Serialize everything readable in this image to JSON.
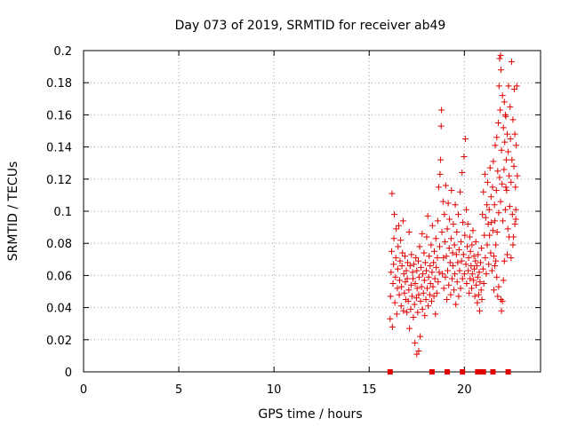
{
  "chart_data": {
    "type": "scatter",
    "title": "Day 073 of 2019, SRMTID for receiver ab49",
    "xlabel": "GPS time / hours",
    "ylabel": "SRMTID / TECUs",
    "xlim": [
      0,
      24
    ],
    "ylim": [
      0,
      0.2
    ],
    "xticks": [
      0,
      5,
      10,
      15,
      20
    ],
    "yticks": [
      0,
      0.02,
      0.04,
      0.06,
      0.08,
      0.1,
      0.12,
      0.14,
      0.16,
      0.18,
      0.2
    ],
    "grid": true,
    "marker": "plus",
    "color": "#e00000",
    "series": [
      {
        "name": "ab49",
        "points": [
          [
            16.1,
            0.033
          ],
          [
            16.12,
            0.047
          ],
          [
            16.15,
            0.062
          ],
          [
            16.18,
            0.075
          ],
          [
            16.2,
            0.111
          ],
          [
            16.22,
            0.028
          ],
          [
            16.25,
            0.055
          ],
          [
            16.28,
            0.067
          ],
          [
            16.3,
            0.083
          ],
          [
            16.32,
            0.098
          ],
          [
            16.35,
            0.043
          ],
          [
            16.38,
            0.059
          ],
          [
            16.4,
            0.071
          ],
          [
            16.42,
            0.089
          ],
          [
            16.45,
            0.036
          ],
          [
            16.48,
            0.052
          ],
          [
            16.5,
            0.064
          ],
          [
            16.52,
            0.078
          ],
          [
            16.55,
            0.091
          ],
          [
            16.58,
            0.048
          ],
          [
            16.6,
            0.057
          ],
          [
            16.62,
            0.069
          ],
          [
            16.65,
            0.082
          ],
          [
            16.68,
            0.041
          ],
          [
            16.7,
            0.053
          ],
          [
            16.72,
            0.066
          ],
          [
            16.75,
            0.074
          ],
          [
            16.78,
            0.094
          ],
          [
            16.8,
            0.038
          ],
          [
            16.82,
            0.061
          ],
          [
            16.85,
            0.049
          ],
          [
            16.88,
            0.072
          ],
          [
            16.9,
            0.056
          ],
          [
            16.92,
            0.045
          ],
          [
            16.95,
            0.063
          ],
          [
            16.98,
            0.037
          ],
          [
            17.0,
            0.058
          ],
          [
            17.02,
            0.068
          ],
          [
            17.05,
            0.044
          ],
          [
            17.08,
            0.051
          ],
          [
            17.1,
            0.087
          ],
          [
            17.12,
            0.027
          ],
          [
            17.15,
            0.066
          ],
          [
            17.18,
            0.039
          ],
          [
            17.2,
            0.054
          ],
          [
            17.22,
            0.073
          ],
          [
            17.25,
            0.047
          ],
          [
            17.28,
            0.062
          ],
          [
            17.3,
            0.058
          ],
          [
            17.32,
            0.034
          ],
          [
            17.35,
            0.067
          ],
          [
            17.38,
            0.042
          ],
          [
            17.4,
            0.018
          ],
          [
            17.42,
            0.055
          ],
          [
            17.45,
            0.071
          ],
          [
            17.48,
            0.046
          ],
          [
            17.5,
            0.063
          ],
          [
            17.52,
            0.052
          ],
          [
            17.55,
            0.037
          ],
          [
            17.58,
            0.069
          ],
          [
            17.6,
            0.048
          ],
          [
            17.62,
            0.059
          ],
          [
            17.65,
            0.078
          ],
          [
            17.68,
            0.022
          ],
          [
            17.7,
            0.044
          ],
          [
            17.72,
            0.065
          ],
          [
            17.75,
            0.053
          ],
          [
            17.78,
            0.086
          ],
          [
            17.8,
            0.039
          ],
          [
            17.82,
            0.061
          ],
          [
            17.85,
            0.049
          ],
          [
            17.88,
            0.074
          ],
          [
            17.9,
            0.057
          ],
          [
            17.92,
            0.035
          ],
          [
            17.95,
            0.068
          ],
          [
            17.98,
            0.045
          ],
          [
            18.0,
            0.063
          ],
          [
            18.02,
            0.084
          ],
          [
            18.05,
            0.052
          ],
          [
            18.08,
            0.097
          ],
          [
            18.1,
            0.041
          ],
          [
            18.12,
            0.059
          ],
          [
            18.15,
            0.072
          ],
          [
            18.18,
            0.048
          ],
          [
            18.2,
            0.066
          ],
          [
            18.22,
            0.055
          ],
          [
            18.25,
            0.079
          ],
          [
            18.28,
            0.044
          ],
          [
            18.3,
            0.062
          ],
          [
            18.32,
            0.091
          ],
          [
            18.35,
            0.053
          ],
          [
            18.38,
            0.068
          ],
          [
            18.4,
            0.047
          ],
          [
            18.42,
            0.075
          ],
          [
            18.45,
            0.058
          ],
          [
            18.48,
            0.036
          ],
          [
            18.5,
            0.083
          ],
          [
            18.52,
            0.065
          ],
          [
            18.55,
            0.049
          ],
          [
            18.58,
            0.071
          ],
          [
            18.6,
            0.094
          ],
          [
            18.62,
            0.056
          ],
          [
            18.65,
            0.115
          ],
          [
            18.68,
            0.062
          ],
          [
            18.7,
            0.078
          ],
          [
            18.72,
            0.123
          ],
          [
            18.75,
            0.132
          ],
          [
            18.78,
            0.153
          ],
          [
            18.8,
            0.163
          ],
          [
            18.82,
            0.087
          ],
          [
            18.85,
            0.061
          ],
          [
            18.88,
            0.106
          ],
          [
            18.9,
            0.071
          ],
          [
            18.92,
            0.052
          ],
          [
            18.95,
            0.098
          ],
          [
            18.98,
            0.081
          ],
          [
            19.0,
            0.059
          ],
          [
            19.02,
            0.116
          ],
          [
            19.05,
            0.072
          ],
          [
            19.08,
            0.045
          ],
          [
            19.1,
            0.089
          ],
          [
            19.12,
            0.063
          ],
          [
            19.15,
            0.105
          ],
          [
            19.18,
            0.054
          ],
          [
            19.2,
            0.077
          ],
          [
            19.22,
            0.095
          ],
          [
            19.25,
            0.068
          ],
          [
            19.28,
            0.048
          ],
          [
            19.3,
            0.083
          ],
          [
            19.32,
            0.113
          ],
          [
            19.35,
            0.058
          ],
          [
            19.38,
            0.074
          ],
          [
            19.4,
            0.066
          ],
          [
            19.42,
            0.092
          ],
          [
            19.45,
            0.051
          ],
          [
            19.48,
            0.079
          ],
          [
            19.5,
            0.061
          ],
          [
            19.52,
            0.104
          ],
          [
            19.55,
            0.042
          ],
          [
            19.58,
            0.073
          ],
          [
            19.6,
            0.087
          ],
          [
            19.62,
            0.056
          ],
          [
            19.65,
            0.068
          ],
          [
            19.68,
            0.098
          ],
          [
            19.7,
            0.047
          ],
          [
            19.72,
            0.076
          ],
          [
            19.75,
            0.063
          ],
          [
            19.78,
            0.112
          ],
          [
            19.8,
            0.052
          ],
          [
            19.82,
            0.081
          ],
          [
            19.85,
            0.069
          ],
          [
            19.88,
            0.124
          ],
          [
            19.9,
            0.058
          ],
          [
            19.92,
            0.093
          ],
          [
            19.95,
            0.073
          ],
          [
            19.98,
            0.134
          ],
          [
            20.0,
            0.061
          ],
          [
            20.02,
            0.085
          ],
          [
            20.05,
            0.145
          ],
          [
            20.08,
            0.067
          ],
          [
            20.1,
            0.101
          ],
          [
            20.12,
            0.055
          ],
          [
            20.15,
            0.078
          ],
          [
            20.18,
            0.092
          ],
          [
            20.2,
            0.063
          ],
          [
            20.22,
            0.071
          ],
          [
            20.25,
            0.049
          ],
          [
            20.28,
            0.084
          ],
          [
            20.3,
            0.058
          ],
          [
            20.32,
            0.075
          ],
          [
            20.35,
            0.066
          ],
          [
            20.38,
            0.052
          ],
          [
            20.4,
            0.079
          ],
          [
            20.42,
            0.061
          ],
          [
            20.45,
            0.088
          ],
          [
            20.48,
            0.057
          ],
          [
            20.5,
            0.072
          ],
          [
            20.52,
            0.064
          ],
          [
            20.55,
            0.047
          ],
          [
            20.58,
            0.069
          ],
          [
            20.6,
            0.081
          ],
          [
            20.62,
            0.054
          ],
          [
            20.65,
            0.066
          ],
          [
            20.68,
            0.043
          ],
          [
            20.7,
            0.059
          ],
          [
            20.72,
            0.073
          ],
          [
            20.75,
            0.048
          ],
          [
            20.78,
            0.062
          ],
          [
            20.8,
            0.038
          ],
          [
            20.82,
            0.056
          ],
          [
            20.85,
            0.068
          ],
          [
            20.88,
            0.051
          ],
          [
            20.9,
            0.077
          ],
          [
            20.92,
            0.045
          ],
          [
            20.95,
            0.098
          ],
          [
            20.98,
            0.064
          ],
          [
            21.0,
            0.112
          ],
          [
            21.02,
            0.055
          ],
          [
            21.05,
            0.085
          ],
          [
            21.08,
            0.123
          ],
          [
            21.1,
            0.071
          ],
          [
            21.12,
            0.096
          ],
          [
            21.15,
            0.061
          ],
          [
            21.18,
            0.104
          ],
          [
            21.2,
            0.079
          ],
          [
            21.22,
            0.118
          ],
          [
            21.25,
            0.092
          ],
          [
            21.28,
            0.067
          ],
          [
            21.3,
            0.101
          ],
          [
            21.32,
            0.085
          ],
          [
            21.35,
            0.127
          ],
          [
            21.38,
            0.074
          ],
          [
            21.4,
            0.109
          ],
          [
            21.42,
            0.093
          ],
          [
            21.45,
            0.063
          ],
          [
            21.48,
            0.115
          ],
          [
            21.5,
            0.088
          ],
          [
            21.52,
            0.131
          ],
          [
            21.55,
            0.072
          ],
          [
            21.58,
            0.104
          ],
          [
            21.6,
            0.094
          ],
          [
            21.62,
            0.141
          ],
          [
            21.65,
            0.079
          ],
          [
            21.68,
            0.113
          ],
          [
            21.7,
            0.146
          ],
          [
            21.72,
            0.087
          ],
          [
            21.75,
            0.125
          ],
          [
            21.78,
            0.155
          ],
          [
            21.8,
            0.099
          ],
          [
            21.82,
            0.178
          ],
          [
            21.85,
            0.121
          ],
          [
            21.88,
            0.163
          ],
          [
            21.9,
            0.106
          ],
          [
            21.92,
            0.188
          ],
          [
            21.95,
            0.138
          ],
          [
            21.98,
            0.117
          ],
          [
            22.0,
            0.172
          ],
          [
            22.02,
            0.094
          ],
          [
            22.05,
            0.152
          ],
          [
            22.08,
            0.126
          ],
          [
            22.1,
            0.168
          ],
          [
            22.12,
            0.143
          ],
          [
            22.15,
            0.101
          ],
          [
            22.18,
            0.159
          ],
          [
            22.2,
            0.132
          ],
          [
            22.22,
            0.113
          ],
          [
            22.25,
            0.148
          ],
          [
            22.28,
            0.089
          ],
          [
            22.3,
            0.137
          ],
          [
            22.32,
            0.178
          ],
          [
            22.35,
            0.122
          ],
          [
            22.38,
            0.103
          ],
          [
            22.4,
            0.165
          ],
          [
            22.42,
            0.145
          ],
          [
            22.45,
            0.118
          ],
          [
            22.48,
            0.193
          ],
          [
            22.5,
            0.132
          ],
          [
            22.52,
            0.098
          ],
          [
            22.55,
            0.157
          ],
          [
            22.58,
            0.084
          ],
          [
            22.6,
            0.128
          ],
          [
            22.62,
            0.176
          ],
          [
            22.65,
            0.148
          ],
          [
            22.68,
            0.115
          ],
          [
            22.7,
            0.095
          ],
          [
            22.72,
            0.141
          ],
          [
            22.75,
            0.178
          ],
          [
            22.78,
            0.122
          ],
          [
            21.85,
            0.195
          ],
          [
            21.9,
            0.197
          ],
          [
            17.5,
            0.011
          ],
          [
            17.6,
            0.013
          ],
          [
            22.15,
            0.16
          ],
          [
            22.18,
            0.115
          ],
          [
            21.55,
            0.051
          ],
          [
            21.6,
            0.066
          ],
          [
            21.75,
            0.047
          ],
          [
            21.8,
            0.053
          ],
          [
            21.95,
            0.038
          ],
          [
            22.0,
            0.044
          ],
          [
            22.05,
            0.057
          ],
          [
            21.65,
            0.069
          ],
          [
            21.7,
            0.059
          ],
          [
            21.92,
            0.045
          ],
          [
            22.1,
            0.069
          ],
          [
            22.25,
            0.073
          ],
          [
            22.35,
            0.084
          ],
          [
            22.45,
            0.071
          ],
          [
            22.55,
            0.079
          ],
          [
            22.65,
            0.092
          ],
          [
            22.7,
            0.101
          ]
        ]
      }
    ],
    "zero_markers": [
      16.1,
      18.3,
      19.1,
      19.9,
      20.7,
      20.9,
      21.0,
      21.5,
      22.3
    ]
  }
}
